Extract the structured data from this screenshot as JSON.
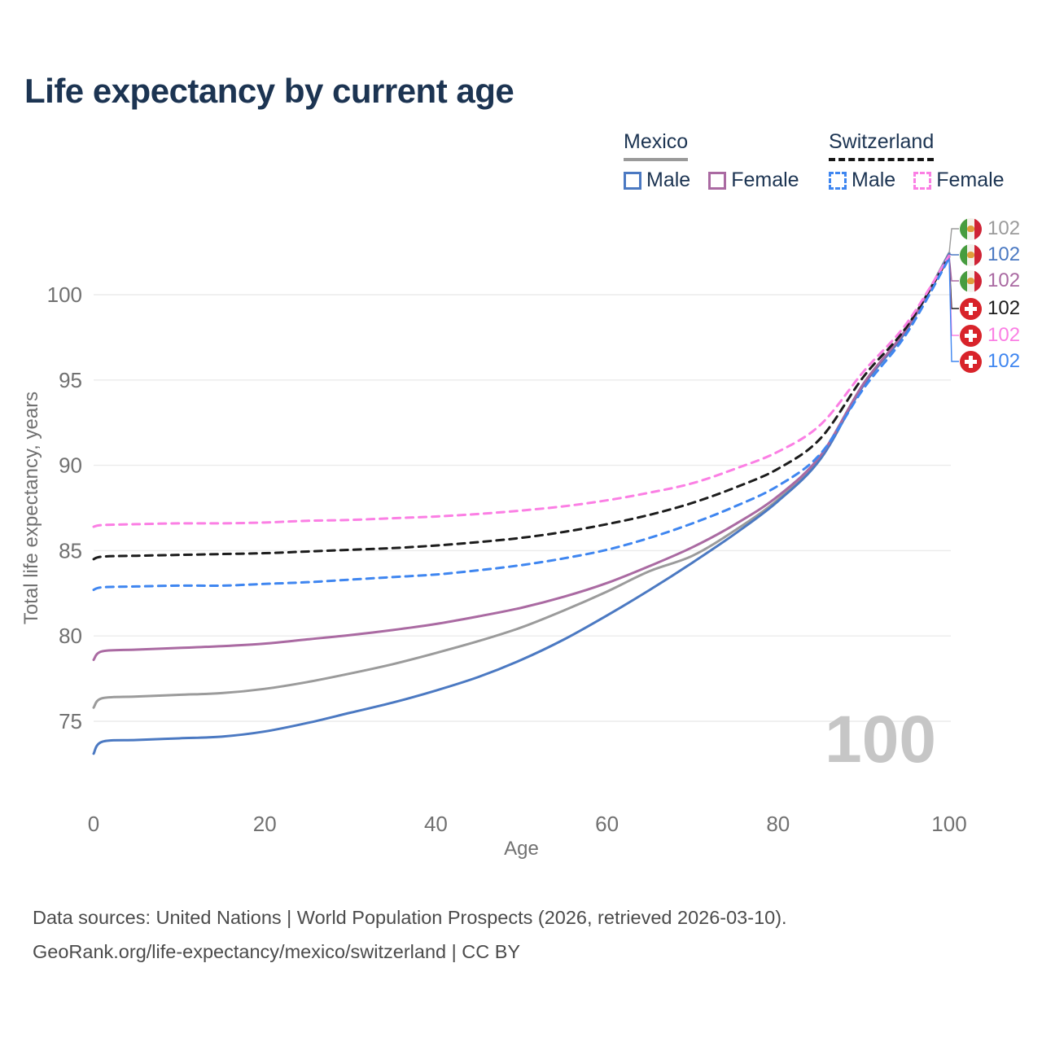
{
  "page": {
    "title": "Life expectancy by current age"
  },
  "legend": {
    "groups": [
      {
        "title": "Mexico",
        "line_style": "solid",
        "line_color": "#9a9a9a",
        "items": [
          {
            "label": "Male",
            "color": "#4b79c2"
          },
          {
            "label": "Female",
            "color": "#aa6aa2"
          }
        ]
      },
      {
        "title": "Switzerland",
        "line_style": "dashed",
        "line_color": "#161616",
        "items": [
          {
            "label": "Male",
            "color": "#3f86f0"
          },
          {
            "label": "Female",
            "color": "#fb7fe4"
          }
        ]
      }
    ]
  },
  "chart_data": {
    "type": "line",
    "title": "Life expectancy by current age",
    "xlabel": "Age",
    "ylabel": "Total life expectancy, years",
    "x_ticks": [
      0,
      20,
      40,
      60,
      80,
      100
    ],
    "y_ticks": [
      75,
      80,
      85,
      90,
      95,
      100
    ],
    "xlim": [
      0,
      100
    ],
    "ylim": [
      73,
      103
    ],
    "grid": "horizontal",
    "grid_color": "#ebebeb",
    "axis_text_color": "#717171",
    "x": [
      0,
      1,
      5,
      10,
      15,
      20,
      25,
      30,
      35,
      40,
      45,
      50,
      55,
      60,
      65,
      70,
      75,
      80,
      85,
      90,
      95,
      100
    ],
    "series": [
      {
        "name": "Mexico Both sexes",
        "country": "mexico",
        "sex": "both",
        "color": "#9b9b9b",
        "dash": false,
        "end_label": "102",
        "values": [
          75.8,
          76.35,
          76.45,
          76.55,
          76.65,
          76.9,
          77.3,
          77.8,
          78.35,
          79.0,
          79.7,
          80.5,
          81.5,
          82.6,
          83.8,
          84.7,
          86.2,
          88.0,
          90.5,
          94.75,
          97.95,
          102.45
        ]
      },
      {
        "name": "Mexico Male",
        "country": "mexico",
        "sex": "male",
        "color": "#4b79c2",
        "dash": false,
        "end_label": "102",
        "values": [
          73.1,
          73.8,
          73.9,
          74.0,
          74.1,
          74.4,
          74.9,
          75.5,
          76.1,
          76.8,
          77.6,
          78.6,
          79.8,
          81.2,
          82.7,
          84.3,
          86.0,
          87.9,
          90.4,
          94.7,
          97.9,
          102.4
        ]
      },
      {
        "name": "Mexico Female",
        "country": "mexico",
        "sex": "female",
        "color": "#aa6aa2",
        "dash": false,
        "end_label": "102",
        "values": [
          78.6,
          79.1,
          79.2,
          79.3,
          79.4,
          79.55,
          79.8,
          80.05,
          80.35,
          80.7,
          81.15,
          81.65,
          82.3,
          83.1,
          84.1,
          85.2,
          86.55,
          88.2,
          90.6,
          94.8,
          98.0,
          102.3
        ]
      },
      {
        "name": "Switzerland Both sexes",
        "country": "switzerland",
        "sex": "both",
        "color": "#1c1c1c",
        "dash": true,
        "end_label": "102",
        "values": [
          84.5,
          84.65,
          84.7,
          84.75,
          84.8,
          84.85,
          84.95,
          85.05,
          85.15,
          85.3,
          85.5,
          85.75,
          86.1,
          86.55,
          87.1,
          87.8,
          88.7,
          89.8,
          91.6,
          95.2,
          98.1,
          102.22
        ]
      },
      {
        "name": "Switzerland Female",
        "country": "switzerland",
        "sex": "female",
        "color": "#fb7fe4",
        "dash": true,
        "end_label": "102",
        "values": [
          86.4,
          86.5,
          86.55,
          86.6,
          86.6,
          86.65,
          86.75,
          86.8,
          86.9,
          87.0,
          87.15,
          87.35,
          87.6,
          87.95,
          88.4,
          88.95,
          89.8,
          90.8,
          92.4,
          95.5,
          98.3,
          102.28
        ]
      },
      {
        "name": "Switzerland Male",
        "country": "switzerland",
        "sex": "male",
        "color": "#3f86f0",
        "dash": true,
        "end_label": "102",
        "values": [
          82.7,
          82.85,
          82.9,
          82.95,
          82.95,
          83.05,
          83.15,
          83.3,
          83.45,
          83.6,
          83.85,
          84.15,
          84.55,
          85.05,
          85.75,
          86.6,
          87.6,
          88.8,
          90.7,
          94.5,
          97.7,
          102.15
        ]
      }
    ],
    "legend_position": "top-right"
  },
  "watermark": "100",
  "footer": {
    "line1": "Data sources: United Nations | World Population Prospects (2026, retrieved 2026-03-10).",
    "line2": "GeoRank.org/life-expectancy/mexico/switzerland | CC BY"
  }
}
